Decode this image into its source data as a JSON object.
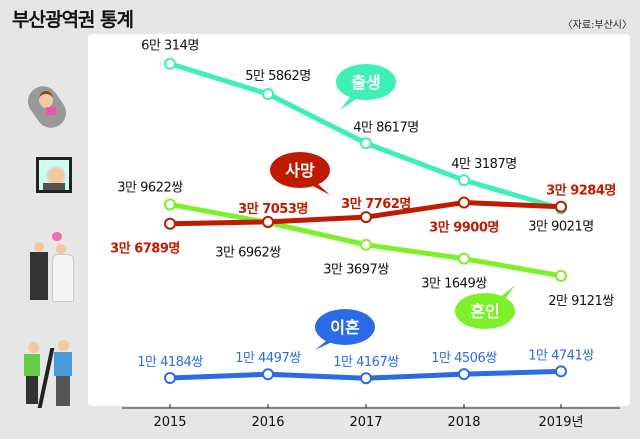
{
  "title": "부산광역권 통계",
  "source": "〈자료:부산시〉",
  "chart_data": {
    "type": "line",
    "categories": [
      "2015",
      "2016",
      "2017",
      "2018",
      "2019년"
    ],
    "grid": false,
    "series": [
      {
        "name": "출생",
        "color": "#3ef0b4",
        "values": [
          60314,
          55862,
          48617,
          43187,
          39021
        ],
        "labels": [
          "6만 314명",
          "5만 5862명",
          "4만 8617명",
          "4만 3187명",
          "3만 9021명"
        ],
        "label_color": "#111"
      },
      {
        "name": "사망",
        "color": "#c01a00",
        "values": [
          36789,
          37053,
          37762,
          39900,
          39284
        ],
        "labels": [
          "3만 6789명",
          "3만 7053명",
          "3만 7762명",
          "3만 9900명",
          "3만 9284명"
        ],
        "label_color": "#c01a00"
      },
      {
        "name": "혼인",
        "color": "#7ef02a",
        "values": [
          39622,
          36962,
          33697,
          31649,
          29121
        ],
        "labels": [
          "3만 9622쌍",
          "3만 6962쌍",
          "3만 3697쌍",
          "3만 1649쌍",
          "2만 9121쌍"
        ],
        "label_color": "#111"
      },
      {
        "name": "이혼",
        "color": "#2a6be8",
        "values": [
          14184,
          14497,
          14167,
          14506,
          14741
        ],
        "labels": [
          "1만 4184쌍",
          "1만 4497쌍",
          "1만 4167쌍",
          "1만 4506쌍",
          "1만 4741쌍"
        ],
        "label_color": "#2a6be8"
      }
    ]
  },
  "icons": [
    "baby-icon",
    "elderly-portrait-icon",
    "wedding-couple-icon",
    "divorce-couple-icon"
  ]
}
